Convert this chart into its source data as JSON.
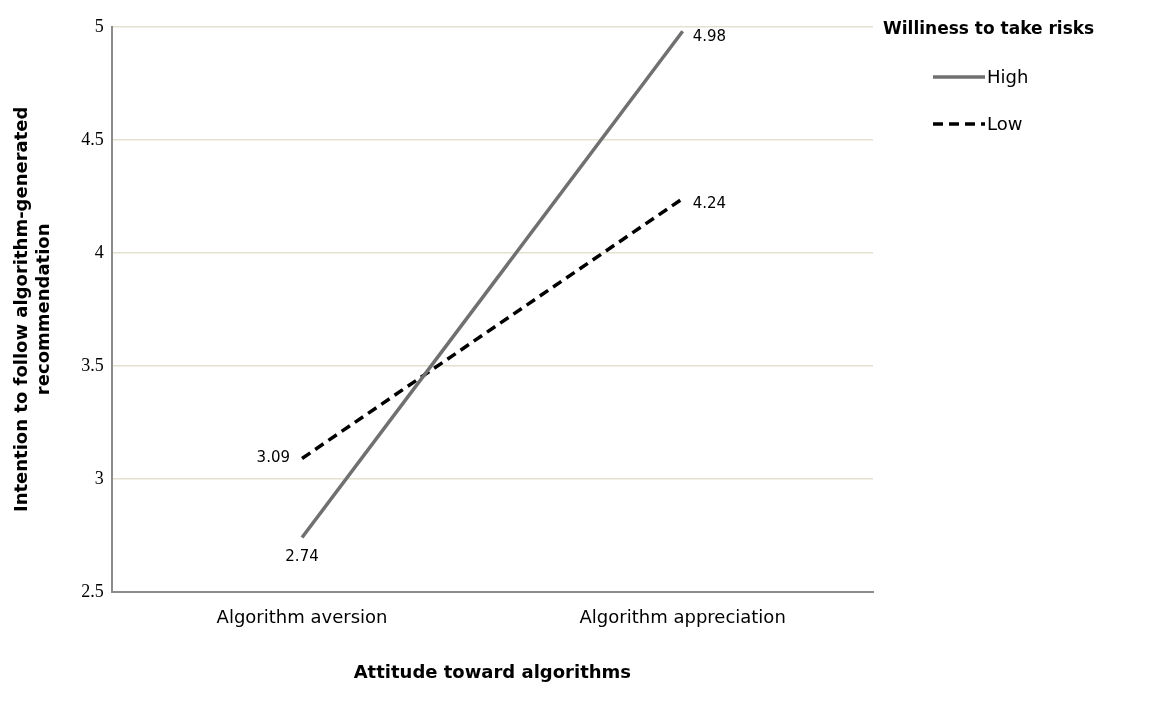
{
  "chart_data": {
    "type": "line",
    "xlabel": "Attitude toward algorithms",
    "ylabel": "Intention to follow algorithm-generated recommendation",
    "legend_title": "Williness to take risks",
    "legend": "top right",
    "categories": [
      "Algorithm aversion",
      "Algorithm appreciation"
    ],
    "series": [
      {
        "name": "High",
        "color": "#707070",
        "values": [
          2.74,
          4.98
        ],
        "line_style": "solid"
      },
      {
        "name": "Low",
        "color": "#000000",
        "values": [
          3.09,
          4.24
        ],
        "line_style": "dashed"
      }
    ],
    "ylim": [
      2.5,
      5
    ],
    "yticks": [
      2.5,
      3,
      3.5,
      4,
      4.5,
      5
    ],
    "grid": "y",
    "marker": "none",
    "data_labels": true
  }
}
